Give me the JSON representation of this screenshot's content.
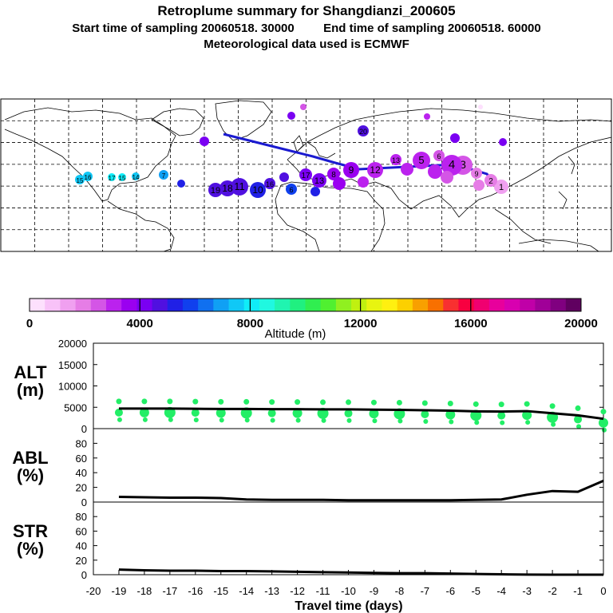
{
  "header": {
    "title": "Retroplume summary for Shangdianzi_200605",
    "start_label": "Start time of sampling 20060518. 30000",
    "end_label": "End time of sampling 20060518. 60000",
    "met_label": "Meteorological data used is ECMWF"
  },
  "map": {
    "description": "World map with retroplume cluster centroids colored by altitude",
    "lon_range": [
      -180,
      180
    ],
    "lat_range": [
      -50,
      90
    ],
    "plume_path_color": "#1a1ad0",
    "cluster_labels": [
      "1",
      "2",
      "3",
      "4",
      "5",
      "6",
      "7",
      "8",
      "9",
      "10",
      "11",
      "12",
      "13",
      "14",
      "15",
      "16",
      "17",
      "18",
      "19",
      "20"
    ]
  },
  "colorbar": {
    "tick_labels": [
      "0",
      "4000",
      "8000",
      "12000",
      "16000",
      "20000"
    ],
    "label": "Altitude (m)",
    "range": [
      0,
      20000
    ],
    "colors": [
      "#fde0fd",
      "#f8c2f8",
      "#f0a0f0",
      "#e67de6",
      "#d455e6",
      "#bb22ee",
      "#9a00f0",
      "#7a00f2",
      "#5010e0",
      "#2020e6",
      "#1040ee",
      "#1070f0",
      "#10a0f4",
      "#10c8f6",
      "#10ecf8",
      "#20f8e0",
      "#20f4b0",
      "#20f080",
      "#30ee50",
      "#50f030",
      "#90f020",
      "#c0f010",
      "#e8f410",
      "#fff010",
      "#fcd000",
      "#f8a000",
      "#f87000",
      "#f83030",
      "#f80040",
      "#f00070",
      "#e8009c",
      "#d800b0",
      "#c000a8",
      "#a00098",
      "#800080",
      "#600060"
    ]
  },
  "chart_data": [
    {
      "type": "line",
      "name": "ALT",
      "ylabel": "ALT\n(m)",
      "ylabel_line1": "ALT",
      "ylabel_line2": "(m)",
      "ylim": [
        0,
        20000
      ],
      "yticks": [
        "20000",
        "15000",
        "10000",
        "5000",
        "0"
      ],
      "x": [
        -19,
        -18,
        -17,
        -16,
        -15,
        -14,
        -13,
        -12,
        -11,
        -10,
        -9,
        -8,
        -7,
        -6,
        -5,
        -4,
        -3,
        -2,
        -1,
        0
      ],
      "values": [
        4700,
        4700,
        4700,
        4650,
        4600,
        4600,
        4550,
        4550,
        4500,
        4500,
        4450,
        4400,
        4300,
        4200,
        4050,
        4000,
        4100,
        3600,
        3100,
        2300
      ],
      "line_color": "#000000",
      "marker_color": "#22ee66"
    },
    {
      "type": "line",
      "name": "ABL",
      "ylabel_line1": "ABL",
      "ylabel_line2": "(%)",
      "ylim": [
        0,
        100
      ],
      "yticks": [
        "80",
        "60",
        "40",
        "20",
        "0"
      ],
      "x": [
        -19,
        -18,
        -17,
        -16,
        -15,
        -14,
        -13,
        -12,
        -11,
        -10,
        -9,
        -8,
        -7,
        -6,
        -5,
        -4,
        -3,
        -2,
        -1,
        0
      ],
      "values": [
        7,
        6.5,
        6,
        6,
        5.5,
        3.5,
        3,
        3,
        3,
        2.5,
        2.5,
        2.5,
        2.5,
        2.5,
        3,
        3.5,
        10,
        15,
        14,
        29
      ],
      "line_color": "#000000"
    },
    {
      "type": "line",
      "name": "STR",
      "ylabel_line1": "STR",
      "ylabel_line2": "(%)",
      "ylim": [
        0,
        100
      ],
      "yticks": [
        "80",
        "60",
        "40",
        "20",
        "0"
      ],
      "x": [
        -19,
        -18,
        -17,
        -16,
        -15,
        -14,
        -13,
        -12,
        -11,
        -10,
        -9,
        -8,
        -7,
        -6,
        -5,
        -4,
        -3,
        -2,
        -1,
        0
      ],
      "values": [
        7,
        6,
        5.5,
        5.5,
        5,
        5,
        4.5,
        4,
        3.5,
        3,
        2.5,
        2,
        2,
        1.5,
        1,
        0.5,
        0.2,
        0,
        0,
        0
      ],
      "line_color": "#000000"
    }
  ],
  "xaxis": {
    "tick_labels": [
      "-20",
      "-19",
      "-18",
      "-17",
      "-16",
      "-15",
      "-14",
      "-13",
      "-12",
      "-11",
      "-10",
      "-9",
      "-8",
      "-7",
      "-6",
      "-5",
      "-4",
      "-3",
      "-2",
      "-1",
      "0"
    ],
    "xlim": [
      -20,
      0
    ],
    "label": "Travel time (days)"
  }
}
